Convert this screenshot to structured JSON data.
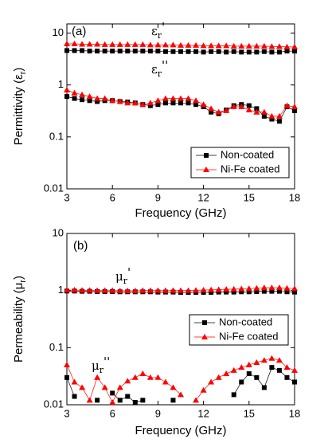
{
  "chart_data": [
    {
      "type": "line",
      "panel": "(a)",
      "log": true,
      "xlabel": "Frequency (GHz)",
      "ylabel": {
        "text": "Permittivity (ε",
        "sub": "r",
        "end": ")"
      },
      "xlim": [
        3,
        18
      ],
      "xticks": [
        3,
        6,
        9,
        12,
        15,
        18
      ],
      "ylim": [
        0.01,
        15
      ],
      "yticks": [
        0.01,
        0.1,
        1,
        10
      ],
      "annotations": [
        {
          "base": "ε",
          "sub": "r",
          "mark": "'"
        },
        {
          "base": "ε",
          "sub": "r",
          "mark": "''"
        }
      ],
      "x": [
        3,
        3.5,
        4,
        4.5,
        5,
        5.5,
        6,
        6.5,
        7,
        7.5,
        8,
        8.5,
        9,
        9.5,
        10,
        10.5,
        11,
        11.5,
        12,
        12.5,
        13,
        13.5,
        14,
        14.5,
        15,
        15.5,
        16,
        16.5,
        17,
        17.5,
        18
      ],
      "series": [
        {
          "name": "Non-coated",
          "color": "#000000",
          "marker": "square",
          "real": [
            4.6,
            4.6,
            4.6,
            4.5,
            4.5,
            4.5,
            4.5,
            4.5,
            4.5,
            4.5,
            4.5,
            4.5,
            4.5,
            4.4,
            4.4,
            4.4,
            4.4,
            4.4,
            4.3,
            4.4,
            4.4,
            4.3,
            4.4,
            4.3,
            4.3,
            4.3,
            4.4,
            4.3,
            4.3,
            4.5,
            4.5
          ],
          "imag": [
            0.6,
            0.55,
            0.52,
            0.5,
            0.48,
            0.5,
            0.5,
            0.48,
            0.47,
            0.45,
            0.42,
            0.4,
            0.42,
            0.45,
            0.45,
            0.45,
            0.45,
            0.42,
            0.38,
            0.3,
            0.28,
            0.33,
            0.4,
            0.42,
            0.4,
            0.35,
            0.25,
            0.22,
            0.2,
            0.38,
            0.32
          ]
        },
        {
          "name": "Ni-Fe coated",
          "color": "#ff0000",
          "marker": "triangle",
          "real": [
            6.2,
            6.2,
            6.1,
            6.1,
            6.1,
            6,
            6,
            6,
            6,
            6,
            6,
            5.9,
            5.9,
            5.9,
            5.9,
            5.8,
            5.8,
            5.8,
            5.7,
            5.7,
            5.7,
            5.7,
            5.6,
            5.6,
            5.6,
            5.6,
            5.6,
            5.5,
            5.5,
            5.4,
            5.4
          ],
          "imag": [
            0.8,
            0.7,
            0.65,
            0.6,
            0.55,
            0.55,
            0.5,
            0.48,
            0.45,
            0.45,
            0.42,
            0.45,
            0.5,
            0.55,
            0.55,
            0.55,
            0.55,
            0.5,
            0.42,
            0.35,
            0.3,
            0.32,
            0.38,
            0.38,
            0.33,
            0.3,
            0.3,
            0.25,
            0.25,
            0.4,
            0.38
          ]
        }
      ]
    },
    {
      "type": "line",
      "panel": "(b)",
      "log": true,
      "xlabel": "Frequency (GHz)",
      "ylabel": {
        "text": "Permeability (μ",
        "sub": "r",
        "end": ")"
      },
      "xlim": [
        3,
        18
      ],
      "xticks": [
        3,
        6,
        9,
        12,
        15,
        18
      ],
      "ylim": [
        0.01,
        10
      ],
      "yticks": [
        0.01,
        0.1,
        1,
        10
      ],
      "annotations": [
        {
          "base": "μ",
          "sub": "r",
          "mark": "'"
        },
        {
          "base": "μ",
          "sub": "r",
          "mark": "''"
        }
      ],
      "x": [
        3,
        3.5,
        4,
        4.5,
        5,
        5.5,
        6,
        6.5,
        7,
        7.5,
        8,
        8.5,
        9,
        9.5,
        10,
        10.5,
        11,
        11.5,
        12,
        12.5,
        13,
        13.5,
        14,
        14.5,
        15,
        15.5,
        16,
        16.5,
        17,
        17.5,
        18
      ],
      "series": [
        {
          "name": "Non-coated",
          "color": "#000000",
          "marker": "square",
          "real": [
            0.98,
            0.98,
            0.97,
            0.97,
            0.96,
            0.96,
            0.96,
            0.95,
            0.95,
            0.95,
            0.95,
            0.95,
            0.94,
            0.94,
            0.94,
            0.93,
            0.93,
            0.93,
            0.93,
            0.93,
            0.94,
            0.94,
            0.94,
            0.95,
            0.95,
            0.96,
            0.97,
            0.97,
            0.97,
            0.95,
            0.94
          ],
          "imag": [
            0.03,
            0.014,
            null,
            null,
            0.012,
            null,
            0.016,
            0.012,
            0.014,
            0.011,
            0.012,
            null,
            null,
            null,
            0.012,
            null,
            null,
            null,
            null,
            null,
            null,
            null,
            0.015,
            0.025,
            0.035,
            0.03,
            0.02,
            0.045,
            0.04,
            0.03,
            0.025
          ]
        },
        {
          "name": "Ni-Fe coated",
          "color": "#ff0000",
          "marker": "triangle",
          "real": [
            1.02,
            1.02,
            1.01,
            1.01,
            1,
            1,
            1,
            0.99,
            0.99,
            0.99,
            1,
            1,
            1,
            1,
            1,
            1,
            1,
            1.01,
            1.02,
            1.03,
            1.04,
            1.05,
            1.06,
            1.07,
            1.08,
            1.1,
            1.12,
            1.12,
            1.12,
            1.1,
            1.08
          ],
          "imag": [
            0.05,
            0.025,
            0.02,
            0.012,
            0.03,
            0.02,
            0.011,
            0.02,
            0.026,
            0.03,
            0.035,
            0.03,
            0.03,
            0.025,
            0.02,
            0.015,
            null,
            0.012,
            0.018,
            0.025,
            0.03,
            0.035,
            0.04,
            0.045,
            0.05,
            0.055,
            0.06,
            0.065,
            0.06,
            0.045,
            0.04
          ]
        }
      ]
    }
  ]
}
